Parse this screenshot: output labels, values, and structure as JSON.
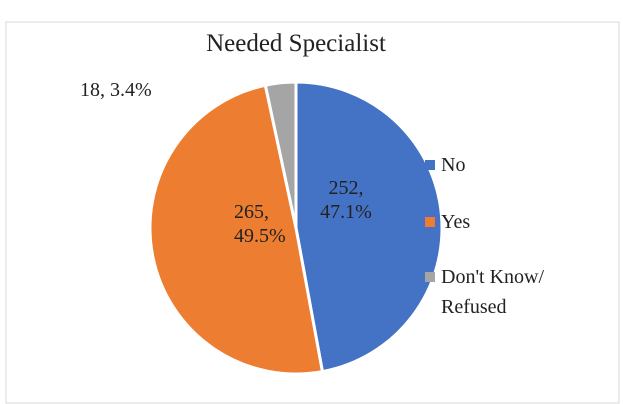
{
  "chart_data": {
    "type": "pie",
    "title": "Needed Specialist",
    "categories": [
      "No",
      "Yes",
      "Don't Know/ Refused"
    ],
    "values": [
      252,
      265,
      18
    ],
    "value_labels": [
      "252, 47.1%",
      "265, 49.5%",
      "18, 3.4%"
    ],
    "colors": [
      "#4472c4",
      "#ed7d31",
      "#a5a5a5"
    ],
    "legend": "right"
  }
}
